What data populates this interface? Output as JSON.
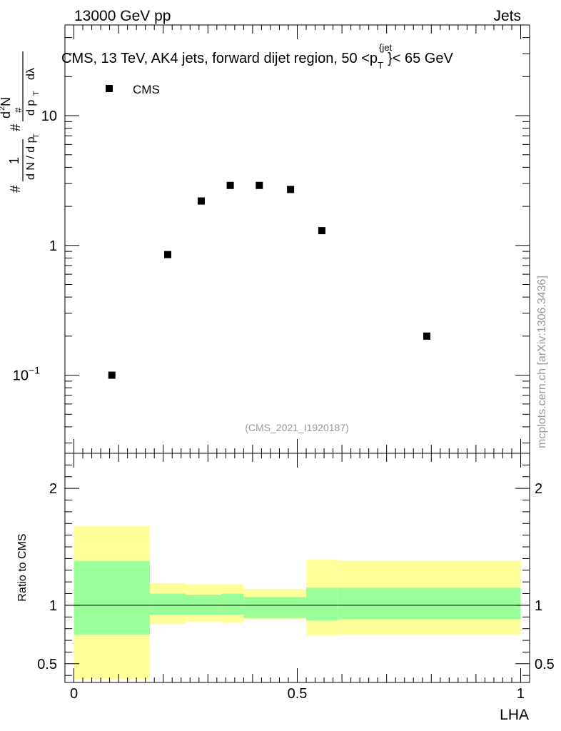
{
  "header": {
    "energy": "13000 GeV pp",
    "category": "Jets",
    "side_label": "mcplots.cern.ch [arXiv:1306.3436]",
    "analysis_id": "(CMS_2021_I1920187)"
  },
  "chart_data": [
    {
      "type": "scatter",
      "title": "CMS, 13 TeV, AK4 jets, forward dijet region, 50 <p",
      "title_sup": "{jet",
      "title_sub": "T",
      "title_tail": "}< 65 GeV",
      "ylabel": "1/(dN/dpT) d²N/(dpT dλ)",
      "yscale": "log",
      "ylim": [
        0.025,
        50
      ],
      "xlim": [
        -0.02,
        1.02
      ],
      "yticks": [
        {
          "value": 0.1,
          "base": "10",
          "exp": "−1"
        },
        {
          "value": 1,
          "base": "1",
          "exp": ""
        },
        {
          "value": 10,
          "base": "10",
          "exp": ""
        }
      ],
      "legend": {
        "label": "CMS",
        "position": "top-left"
      },
      "series": [
        {
          "name": "CMS",
          "x": [
            0.085,
            0.21,
            0.285,
            0.35,
            0.415,
            0.485,
            0.555,
            0.79
          ],
          "y": [
            0.1,
            0.85,
            2.2,
            2.9,
            2.9,
            2.7,
            1.3,
            0.2
          ]
        }
      ]
    },
    {
      "type": "area",
      "ylabel": "Ratio to CMS",
      "xlabel": "LHA",
      "ylim": [
        0.34,
        2.3
      ],
      "xlim": [
        -0.02,
        1.02
      ],
      "xticks": [
        {
          "value": 0,
          "label": "0"
        },
        {
          "value": 0.5,
          "label": "0.5"
        },
        {
          "value": 1,
          "label": "1"
        }
      ],
      "yticks": [
        {
          "value": 0.5,
          "label": "0.5"
        },
        {
          "value": 1,
          "label": "1"
        },
        {
          "value": 2,
          "label": "2"
        }
      ],
      "reference_line": 1,
      "bins": [
        {
          "x0": 0.0,
          "x1": 0.17,
          "inner": [
            0.75,
            1.38
          ],
          "outer": [
            0.37,
            1.68
          ]
        },
        {
          "x0": 0.17,
          "x1": 0.25,
          "inner": [
            0.92,
            1.1
          ],
          "outer": [
            0.84,
            1.19
          ]
        },
        {
          "x0": 0.25,
          "x1": 0.33,
          "inner": [
            0.92,
            1.09
          ],
          "outer": [
            0.86,
            1.18
          ]
        },
        {
          "x0": 0.33,
          "x1": 0.38,
          "inner": [
            0.92,
            1.1
          ],
          "outer": [
            0.85,
            1.18
          ]
        },
        {
          "x0": 0.38,
          "x1": 0.52,
          "inner": [
            0.89,
            1.07
          ],
          "outer": [
            0.88,
            1.14
          ]
        },
        {
          "x0": 0.52,
          "x1": 0.59,
          "inner": [
            0.87,
            1.15
          ],
          "outer": [
            0.74,
            1.39
          ]
        },
        {
          "x0": 0.59,
          "x1": 1.0,
          "inner": [
            0.88,
            1.15
          ],
          "outer": [
            0.75,
            1.38
          ]
        }
      ],
      "colors": {
        "inner": "#99ff99",
        "outer": "#ffff99",
        "line": "#000000"
      }
    }
  ]
}
